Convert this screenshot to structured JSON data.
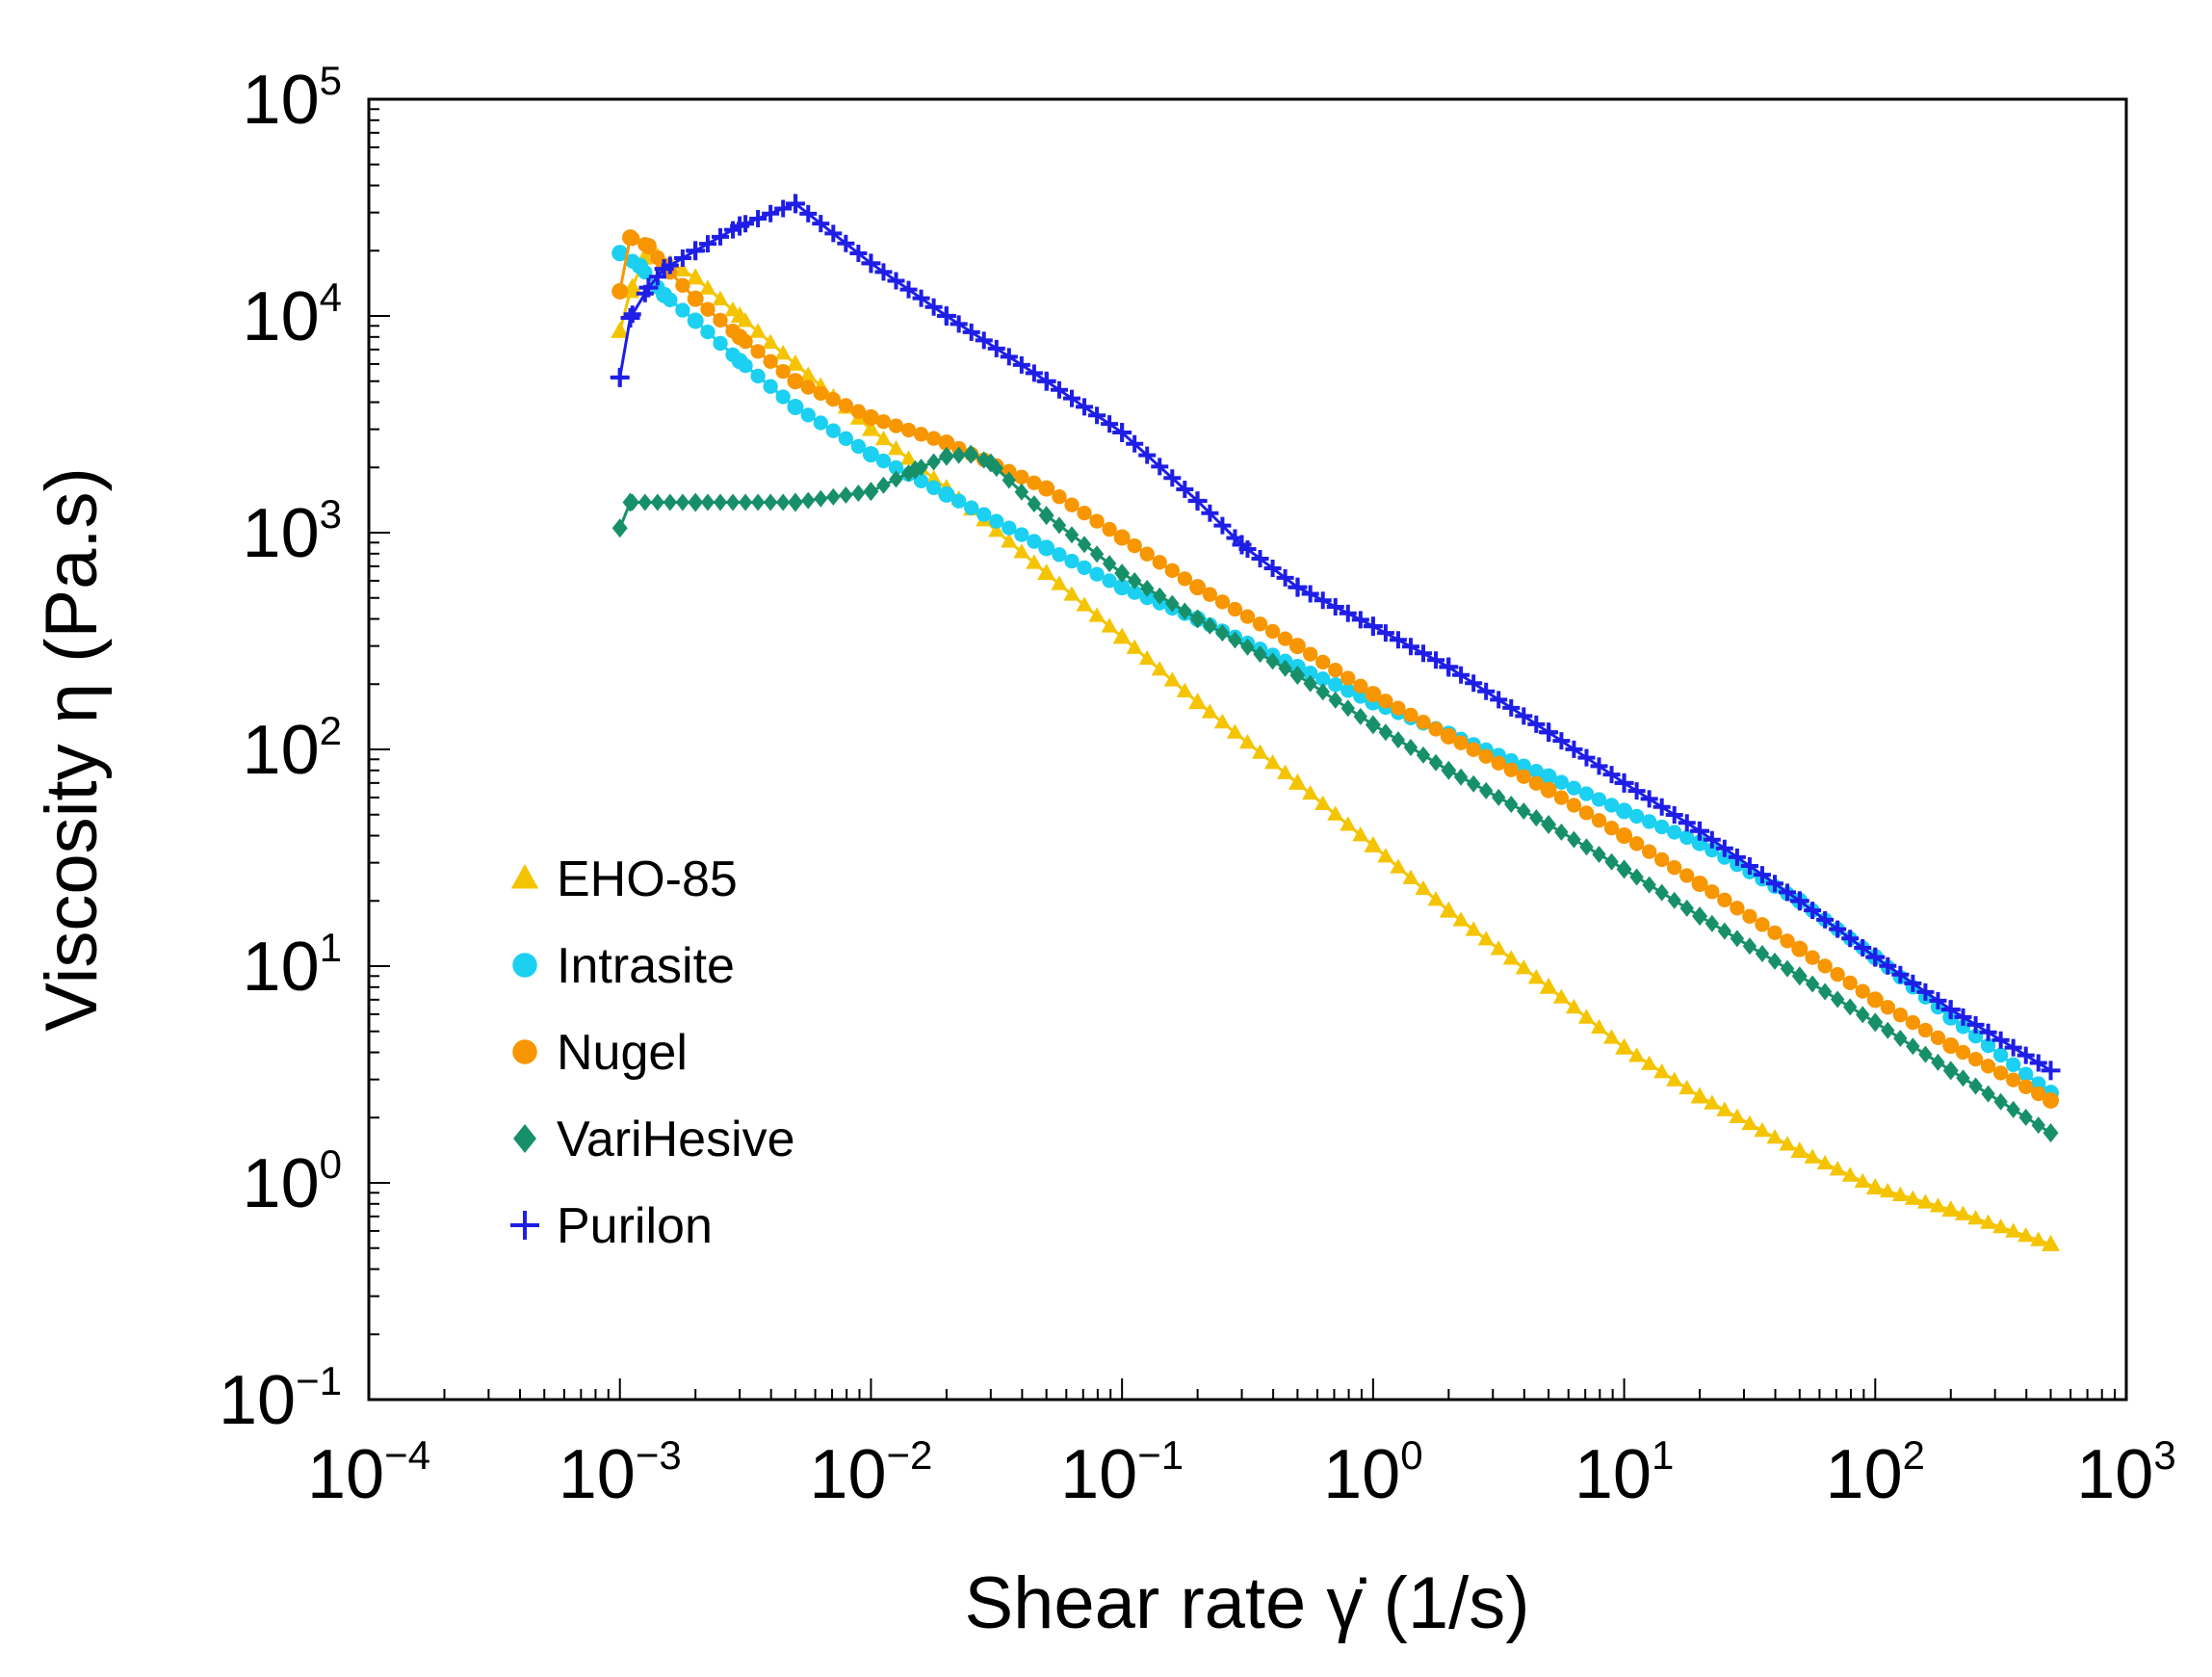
{
  "chart_data": {
    "type": "scatter",
    "title": "",
    "xlabel": "Shear rate γ̇ (1/s)",
    "ylabel": "Viscosity η (Pa.s)",
    "xscale": "log",
    "yscale": "log",
    "xlim": [
      0.0001,
      1000
    ],
    "ylim": [
      0.1,
      100000
    ],
    "grid": false,
    "legend_position": "left-middle",
    "x_ticks": [
      {
        "base": "10",
        "exp": "−4",
        "value": 0.0001
      },
      {
        "base": "10",
        "exp": "−3",
        "value": 0.001
      },
      {
        "base": "10",
        "exp": "−2",
        "value": 0.01
      },
      {
        "base": "10",
        "exp": "−1",
        "value": 0.1
      },
      {
        "base": "10",
        "exp": "0",
        "value": 1
      },
      {
        "base": "10",
        "exp": "1",
        "value": 10
      },
      {
        "base": "10",
        "exp": "2",
        "value": 100
      },
      {
        "base": "10",
        "exp": "3",
        "value": 1000
      }
    ],
    "y_ticks": [
      {
        "base": "10",
        "exp": "−1",
        "value": 0.1
      },
      {
        "base": "10",
        "exp": "0",
        "value": 1
      },
      {
        "base": "10",
        "exp": "1",
        "value": 10
      },
      {
        "base": "10",
        "exp": "2",
        "value": 100
      },
      {
        "base": "10",
        "exp": "3",
        "value": 1000
      },
      {
        "base": "10",
        "exp": "4",
        "value": 10000
      },
      {
        "base": "10",
        "exp": "5",
        "value": 100000
      }
    ],
    "series": [
      {
        "name": "EHO-85",
        "color": "#F5C400",
        "marker": "triangle",
        "x": [
          0.001,
          0.0011,
          0.0013,
          0.002,
          0.003,
          0.005,
          0.01,
          0.02,
          0.05,
          0.1,
          0.2,
          0.5,
          1,
          2,
          5,
          10,
          20,
          50,
          100,
          200,
          500
        ],
        "y": [
          8500,
          13000,
          20000,
          15000,
          10000,
          6000,
          3000,
          1600,
          650,
          330,
          165,
          70,
          36,
          18,
          8,
          4.2,
          2.5,
          1.4,
          0.95,
          0.75,
          0.52
        ]
      },
      {
        "name": "Intrasite",
        "color": "#1BD0F0",
        "marker": "circle",
        "x": [
          0.001,
          0.0012,
          0.0015,
          0.002,
          0.003,
          0.005,
          0.01,
          0.02,
          0.05,
          0.1,
          0.2,
          0.5,
          1,
          2,
          5,
          10,
          20,
          50,
          100,
          200,
          500
        ],
        "y": [
          19500,
          17000,
          12500,
          9500,
          6200,
          3800,
          2300,
          1500,
          850,
          560,
          400,
          240,
          165,
          118,
          75,
          52,
          37,
          20,
          11,
          5.8,
          2.6
        ]
      },
      {
        "name": "Nugel",
        "color": "#F79600",
        "marker": "circle",
        "x": [
          0.001,
          0.0011,
          0.0013,
          0.0015,
          0.002,
          0.003,
          0.005,
          0.01,
          0.02,
          0.05,
          0.1,
          0.2,
          0.5,
          1,
          2,
          5,
          10,
          20,
          50,
          100,
          200,
          500
        ],
        "y": [
          13000,
          23000,
          21000,
          17000,
          12000,
          8000,
          5000,
          3400,
          2600,
          1600,
          950,
          560,
          300,
          180,
          115,
          65,
          40,
          24,
          12,
          7,
          4.3,
          2.4
        ]
      },
      {
        "name": "VariHesive",
        "color": "#17906A",
        "marker": "diamond",
        "x": [
          0.001,
          0.0011,
          0.002,
          0.005,
          0.01,
          0.015,
          0.02,
          0.025,
          0.03,
          0.05,
          0.1,
          0.2,
          0.5,
          1,
          2,
          5,
          10,
          20,
          50,
          100,
          200,
          500
        ],
        "y": [
          1050,
          1380,
          1380,
          1380,
          1550,
          1950,
          2250,
          2300,
          2100,
          1200,
          650,
          400,
          220,
          130,
          80,
          45,
          28,
          17,
          9,
          5.5,
          3.3,
          1.7
        ]
      },
      {
        "name": "Purilon",
        "color": "#1E1EE6",
        "marker": "cross",
        "x": [
          0.001,
          0.0011,
          0.0013,
          0.0015,
          0.002,
          0.003,
          0.005,
          0.01,
          0.02,
          0.05,
          0.1,
          0.2,
          0.3,
          0.5,
          1,
          2,
          5,
          10,
          20,
          50,
          100,
          200,
          500
        ],
        "y": [
          5200,
          9800,
          13500,
          16500,
          20000,
          26000,
          33000,
          17500,
          10000,
          5000,
          2900,
          1400,
          880,
          560,
          370,
          240,
          120,
          70,
          42,
          20,
          11,
          6.3,
          3.3
        ]
      }
    ]
  }
}
